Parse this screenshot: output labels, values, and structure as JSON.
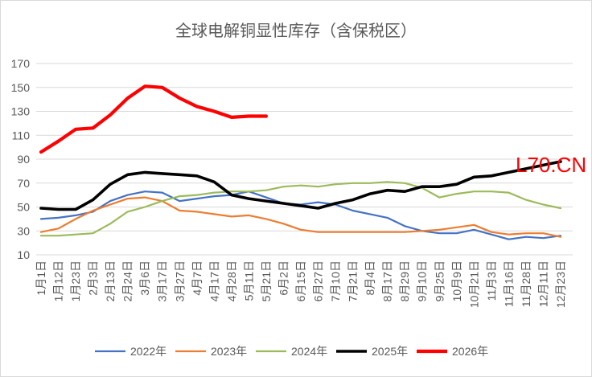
{
  "chart_data": {
    "type": "line",
    "title": "全球电解铜显性库存（含保税区）",
    "categories": [
      "1月1日",
      "1月12日",
      "1月23日",
      "2月3日",
      "2月13日",
      "2月24日",
      "3月6日",
      "3月17日",
      "3月27日",
      "4月7日",
      "4月17日",
      "4月28日",
      "5月11日",
      "5月21日",
      "6月2日",
      "6月15日",
      "6月27日",
      "7月10日",
      "7月21日",
      "8月4日",
      "8月17日",
      "8月29日",
      "9月10日",
      "9月25日",
      "10月9日",
      "10月21日",
      "11月3日",
      "11月16日",
      "11月28日",
      "12月11日",
      "12月23日"
    ],
    "ylim": [
      10,
      170
    ],
    "yticks": [
      10,
      30,
      50,
      70,
      90,
      110,
      130,
      150,
      170
    ],
    "grid": true,
    "legend": "bottom",
    "series": [
      {
        "name": "2022年",
        "color": "#4472c4",
        "values": [
          40,
          41,
          43,
          46,
          55,
          60,
          63,
          62,
          55,
          57,
          59,
          60,
          63,
          58,
          53,
          52,
          54,
          52,
          47,
          44,
          41,
          34,
          30,
          28,
          28,
          31,
          27,
          23,
          25,
          24,
          26
        ]
      },
      {
        "name": "2023年",
        "color": "#ed7d31",
        "values": [
          29,
          32,
          40,
          47,
          52,
          57,
          58,
          55,
          47,
          46,
          44,
          42,
          43,
          40,
          36,
          31,
          29,
          29,
          29,
          29,
          29,
          29,
          30,
          31,
          33,
          35,
          29,
          27,
          28,
          28,
          25
        ]
      },
      {
        "name": "2024年",
        "color": "#9bbb59",
        "values": [
          26,
          26,
          27,
          28,
          36,
          46,
          50,
          55,
          59,
          60,
          62,
          63,
          63,
          64,
          67,
          68,
          67,
          69,
          70,
          70,
          71,
          70,
          66,
          58,
          61,
          63,
          63,
          62,
          56,
          52,
          49
        ]
      },
      {
        "name": "2025年",
        "color": "#000000",
        "values": [
          49,
          48,
          48,
          56,
          69,
          77,
          79,
          78,
          77,
          76,
          71,
          60,
          57,
          55,
          53,
          51,
          49,
          53,
          56,
          61,
          64,
          63,
          67,
          67,
          69,
          75,
          76,
          79,
          82,
          85,
          88
        ]
      },
      {
        "name": "2026年",
        "color": "#ff0000",
        "values": [
          96,
          105,
          115,
          116,
          127,
          141,
          151,
          150,
          141,
          134,
          130,
          125,
          126,
          126,
          null,
          null,
          null,
          null,
          null,
          null,
          null,
          null,
          null,
          null,
          null,
          null,
          null,
          null,
          null,
          null,
          null
        ]
      }
    ]
  },
  "watermark": {
    "text": "L70.CN",
    "color": "#ff0000"
  }
}
